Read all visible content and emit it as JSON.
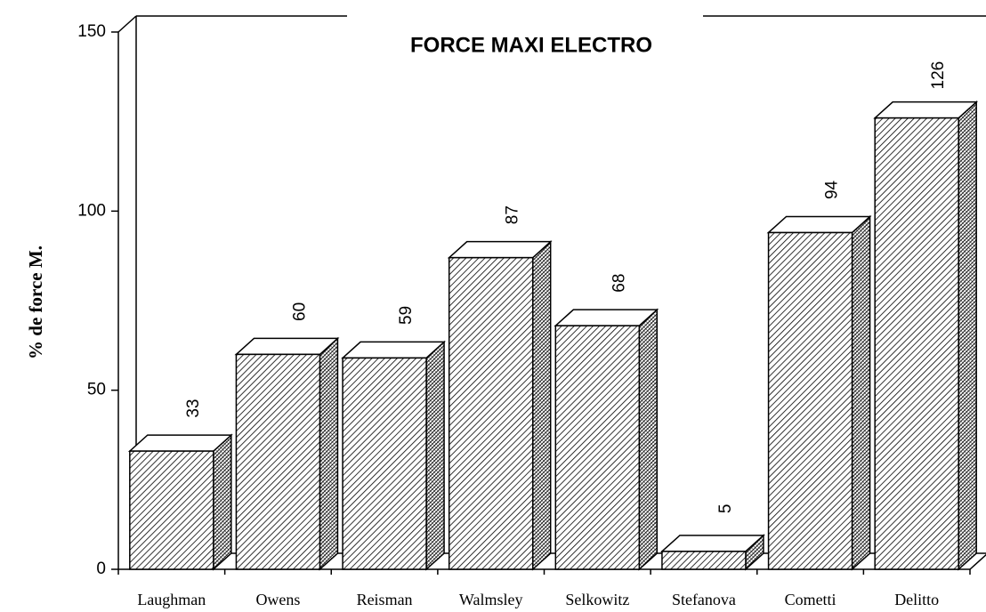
{
  "chart_data": {
    "type": "bar",
    "title": "FORCE MAXI ELECTRO",
    "y_label": "% de force M.",
    "categories": [
      "Laughman",
      "Owens",
      "Reisman",
      "Walmsley",
      "Selkowitz",
      "Stefanova",
      "Cometti",
      "Delitto"
    ],
    "values": [
      33,
      60,
      59,
      87,
      68,
      5,
      94,
      126
    ],
    "ylim": [
      0,
      150
    ],
    "yticks": [
      0,
      50,
      100,
      150
    ],
    "color": "#000000"
  }
}
